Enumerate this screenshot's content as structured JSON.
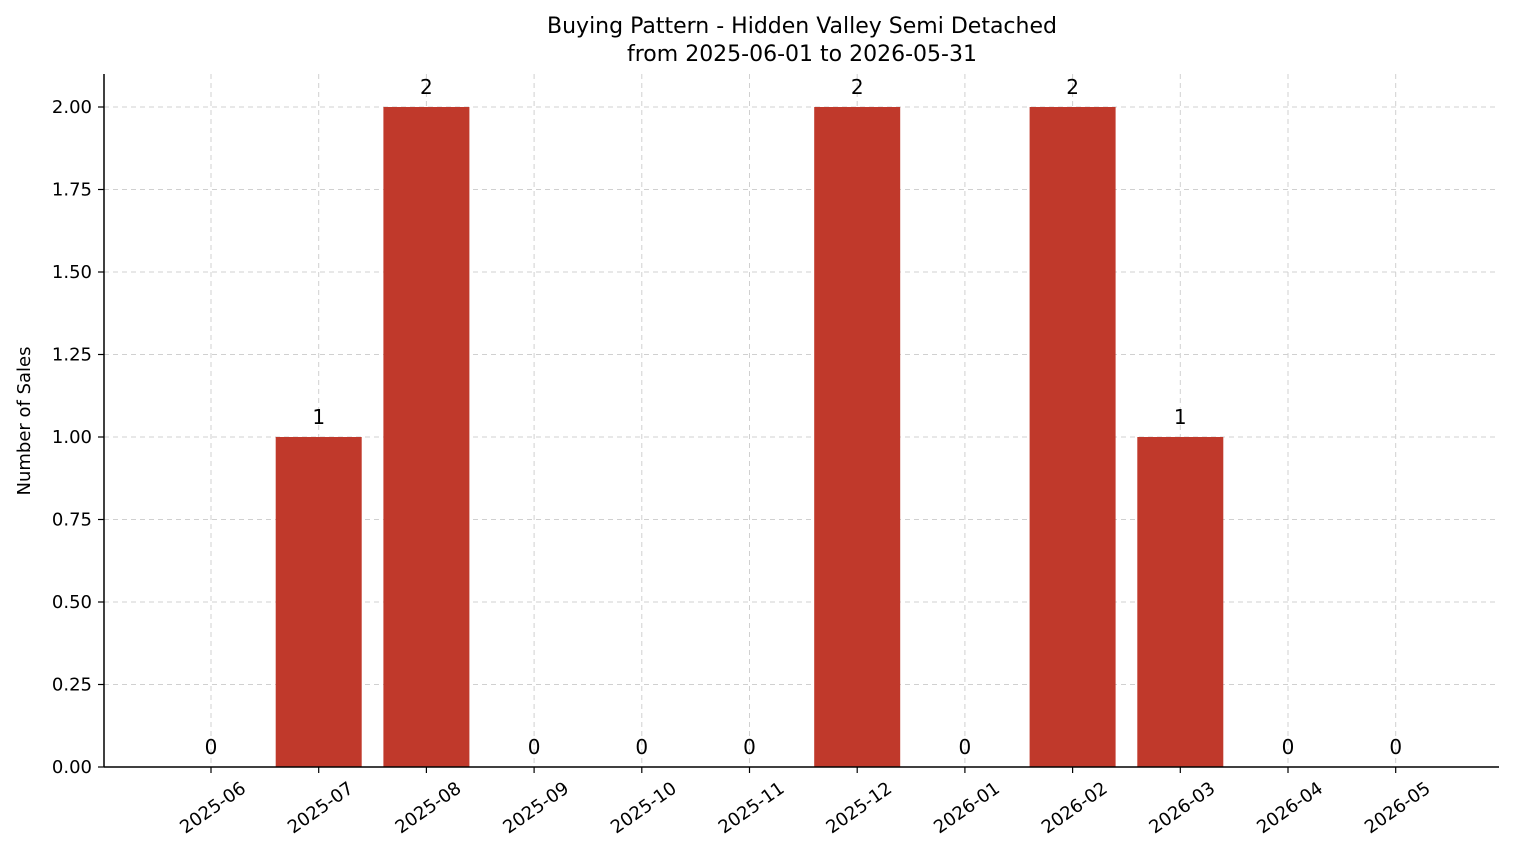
{
  "chart_data": {
    "type": "bar",
    "title": "Buying Pattern - Hidden Valley Semi Detached",
    "subtitle": "from 2025-06-01 to 2026-05-31",
    "xlabel": "",
    "ylabel": "Number of Sales",
    "categories": [
      "2025-06",
      "2025-07",
      "2025-08",
      "2025-09",
      "2025-10",
      "2025-11",
      "2025-12",
      "2026-01",
      "2026-02",
      "2026-03",
      "2026-04",
      "2026-05"
    ],
    "values": [
      0,
      1,
      2,
      0,
      0,
      0,
      2,
      0,
      2,
      1,
      0,
      0
    ],
    "data_labels": [
      "0",
      "1",
      "2",
      "0",
      "0",
      "0",
      "2",
      "0",
      "2",
      "1",
      "0",
      "0"
    ],
    "yticks": [
      "0.00",
      "0.25",
      "0.50",
      "0.75",
      "1.00",
      "1.25",
      "1.50",
      "1.75",
      "2.00"
    ],
    "ylim": [
      0,
      2.1
    ],
    "grid": true,
    "bar_color": "#c0392b"
  }
}
